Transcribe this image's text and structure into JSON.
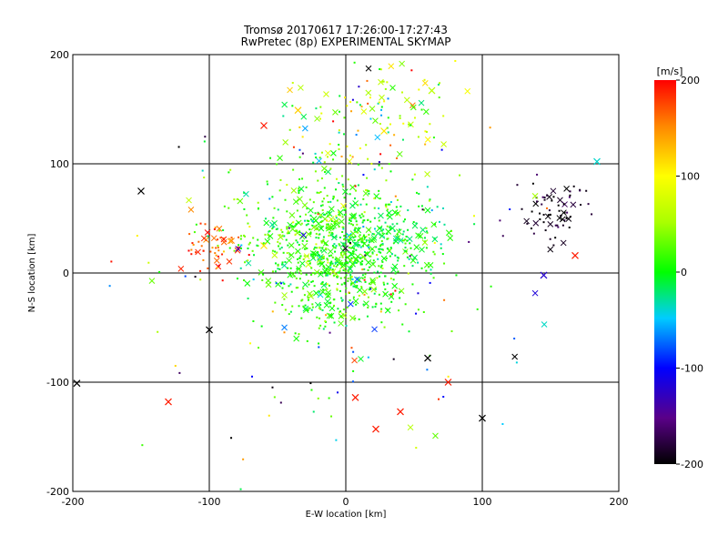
{
  "chart_data": {
    "type": "scatter",
    "title_lines": [
      "Tromsø 20170617 17:26:00-17:27:43",
      "RwPretec (8p) EXPERIMENTAL SKYMAP"
    ],
    "xlabel": "E-W location [km]",
    "ylabel": "N-S location [km]",
    "xlim": [
      -200,
      200
    ],
    "ylim": [
      -200,
      200
    ],
    "x_ticks": [
      -200,
      -100,
      0,
      100,
      200
    ],
    "y_ticks": [
      -200,
      -100,
      0,
      100,
      200
    ],
    "grid_lines": [
      -100,
      0,
      100
    ],
    "colorbar": {
      "unit_label": "[m/s]",
      "min": -200,
      "max": 200,
      "ticks": [
        200,
        100,
        0,
        -100,
        -200
      ]
    },
    "point_groups": [
      {
        "name": "",
        "n": 620,
        "center": [
          -5,
          15
        ],
        "spread": [
          26,
          30
        ],
        "velocity": 10,
        "velocity_spread": 18
      },
      {
        "name": "",
        "n": 220,
        "center": [
          -30,
          40
        ],
        "spread": [
          35,
          35
        ],
        "velocity": 20,
        "velocity_spread": 25
      },
      {
        "name": "",
        "n": 140,
        "center": [
          35,
          30
        ],
        "spread": [
          22,
          18
        ],
        "velocity": -5,
        "velocity_spread": 20
      },
      {
        "name": "",
        "n": 120,
        "center": [
          20,
          140
        ],
        "spread": [
          30,
          25
        ],
        "velocity": 50,
        "velocity_spread": 50
      },
      {
        "name": "",
        "n": 70,
        "center": [
          155,
          55
        ],
        "spread": [
          12,
          14
        ],
        "velocity": -190,
        "velocity_spread": 15
      },
      {
        "name": "",
        "n": 55,
        "center": [
          -97,
          25
        ],
        "spread": [
          10,
          12
        ],
        "velocity": 175,
        "velocity_spread": 20
      },
      {
        "name": "",
        "n": 160,
        "center": [
          0,
          0
        ],
        "spread": [
          80,
          100
        ],
        "velocity": 0,
        "velocity_spread": 110
      }
    ],
    "x_markers": [
      {
        "x": -150,
        "y": 75,
        "v": -200
      },
      {
        "x": -100,
        "y": -52,
        "v": -200
      },
      {
        "x": -197,
        "y": -101,
        "v": -200
      },
      {
        "x": 100,
        "y": -133,
        "v": -200
      },
      {
        "x": 60,
        "y": -78,
        "v": -200
      },
      {
        "x": 145,
        "y": -2,
        "v": -120
      },
      {
        "x": 168,
        "y": 16,
        "v": 190
      },
      {
        "x": -130,
        "y": -118,
        "v": 190
      },
      {
        "x": 40,
        "y": -127,
        "v": 190
      },
      {
        "x": 22,
        "y": -143,
        "v": 190
      },
      {
        "x": 75,
        "y": -100,
        "v": 190
      },
      {
        "x": 7,
        "y": -114,
        "v": 190
      },
      {
        "x": -60,
        "y": 135,
        "v": 190
      },
      {
        "x": -35,
        "y": 149,
        "v": 120
      },
      {
        "x": 63,
        "y": 167,
        "v": 60
      },
      {
        "x": 28,
        "y": 130,
        "v": 110
      },
      {
        "x": -60,
        "y": 25,
        "v": 110
      },
      {
        "x": 184,
        "y": 102,
        "v": -40
      }
    ]
  }
}
